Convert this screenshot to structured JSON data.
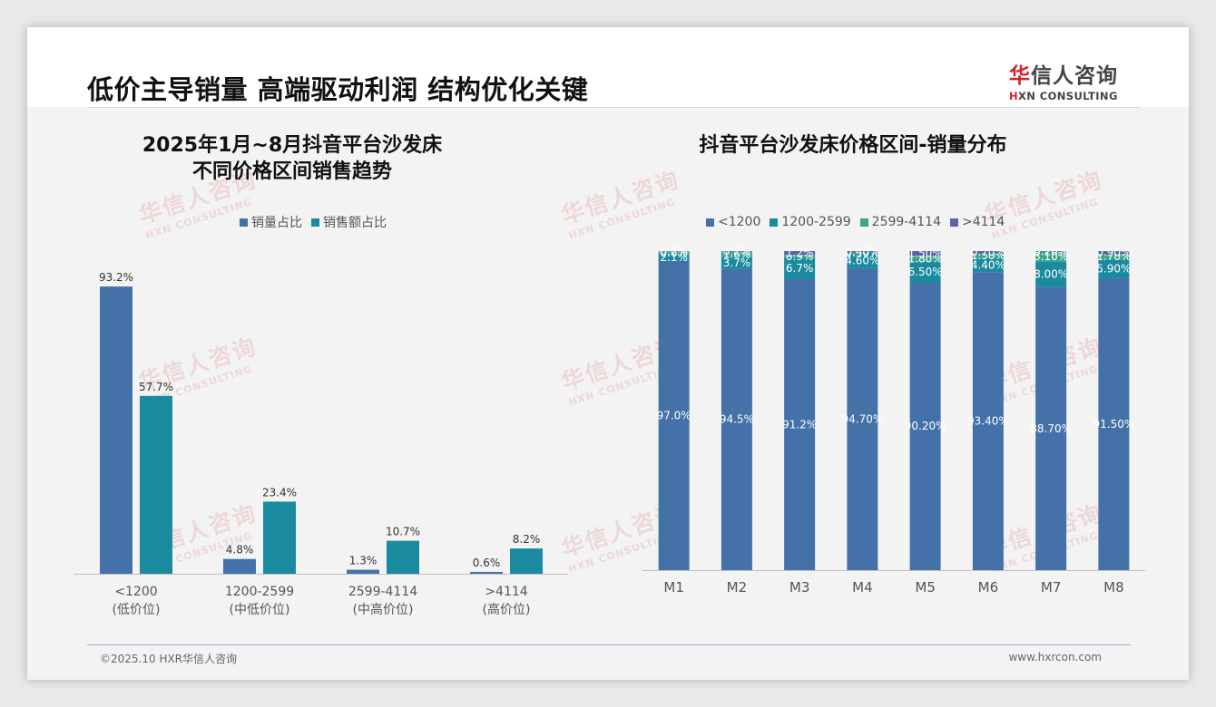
{
  "slide": {
    "title": "低价主导销量 高端驱动利润 结构优化关键",
    "logo_cn_prefix": "华",
    "logo_cn_suffix": "信人咨询",
    "logo_en_prefix": "H",
    "logo_en_suffix": "XN CONSULTING",
    "footer_left": "©2025.10 HXR华信人咨询",
    "footer_right": "www.hxrcon.com",
    "watermark_cn": "华信人咨询",
    "watermark_en": "HXN CONSULTING"
  },
  "chart_data": [
    {
      "type": "bar",
      "title_line1": "2025年1月~8月抖音平台沙发床",
      "title_line2": "不同价格区间销售趋势",
      "categories": [
        "<1200",
        "1200-2599",
        "2599-4114",
        ">4114"
      ],
      "category_sublabels": [
        "(低价位)",
        "(中低价位)",
        "(中高价位)",
        "(高价位)"
      ],
      "series": [
        {
          "name": "销量占比",
          "color": "#4472a8",
          "values": [
            93.2,
            4.8,
            1.3,
            0.6
          ]
        },
        {
          "name": "销售额占比",
          "color": "#1a8a9e",
          "values": [
            57.7,
            23.4,
            10.7,
            8.2
          ]
        }
      ],
      "value_labels": [
        [
          "93.2%",
          "4.8%",
          "1.3%",
          "0.6%"
        ],
        [
          "57.7%",
          "23.4%",
          "10.7%",
          "8.2%"
        ]
      ],
      "ylim": [
        0,
        100
      ],
      "grid": false,
      "legend_position": "top"
    },
    {
      "type": "bar",
      "stacked": true,
      "title": "抖音平台沙发床价格区间-销量分布",
      "categories": [
        "M1",
        "M2",
        "M3",
        "M4",
        "M5",
        "M6",
        "M7",
        "M8"
      ],
      "series": [
        {
          "name": "<1200",
          "color": "#4472a8",
          "values": [
            97.0,
            94.5,
            91.2,
            94.7,
            90.2,
            93.4,
            88.7,
            91.5
          ],
          "labels": [
            "97.0%",
            "94.5%",
            "91.2%",
            "94.70%",
            "90.20%",
            "93.40%",
            "88.70%",
            "91.50%"
          ]
        },
        {
          "name": "1200-2599",
          "color": "#1a8a9e",
          "values": [
            2.1,
            3.7,
            6.7,
            4.6,
            6.5,
            4.4,
            8.0,
            5.9
          ],
          "labels": [
            "2.1%",
            "3.7%",
            "6.7%",
            "4.60%",
            "6.50%",
            "4.40%",
            "8.00%",
            "5.90%"
          ]
        },
        {
          "name": "2599-4114",
          "color": "#3aa58e",
          "values": [
            0.6,
            1.6,
            0.9,
            0.3,
            1.8,
            1.5,
            3.1,
            1.7
          ],
          "labels": [
            "0.6%",
            "1.6%",
            "0.9%",
            "0.30%",
            "1.80%",
            "1.50%",
            "3.10%",
            "1.70%"
          ]
        },
        {
          "name": ">4114",
          "color": "#5b62a8",
          "values": [
            0.2,
            0.2,
            1.2,
            0.4,
            1.5,
            0.7,
            0.2,
            0.9
          ],
          "labels": [
            "0.2%",
            "0.2%",
            "1.2%",
            "0.40%",
            "1.50%",
            "0.70%",
            "0.20%",
            "0.90%"
          ]
        }
      ],
      "ylim": [
        0,
        100
      ],
      "grid": false,
      "legend_position": "top"
    }
  ]
}
